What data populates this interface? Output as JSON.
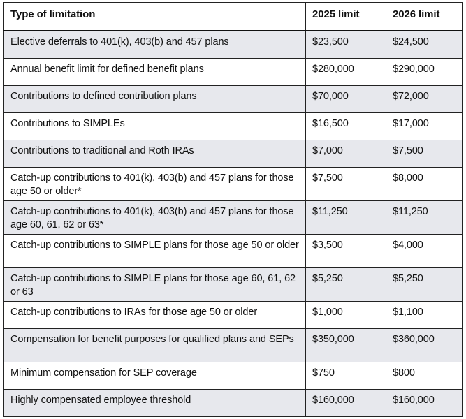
{
  "table": {
    "header": [
      "Type of limitation",
      "2025 limit",
      "2026 limit"
    ],
    "rows": [
      [
        "Elective deferrals to 401(k), 403(b) and 457 plans",
        "$23,500",
        "$24,500"
      ],
      [
        "Annual benefit limit for defined benefit plans",
        "$280,000",
        "$290,000"
      ],
      [
        "Contributions to defined contribution plans",
        "$70,000",
        "$72,000"
      ],
      [
        "Contributions to SIMPLEs",
        "$16,500",
        "$17,000"
      ],
      [
        "Contributions to traditional and Roth IRAs",
        "$7,000",
        "$7,500"
      ],
      [
        "Catch-up contributions to 401(k), 403(b) and 457 plans for those age 50 or older*",
        "$7,500",
        "$8,000"
      ],
      [
        "Catch-up contributions to 401(k), 403(b) and 457 plans for those age 60, 61, 62 or 63*",
        "$11,250",
        "$11,250"
      ],
      [
        "Catch-up contributions to SIMPLE plans for those age 50 or older",
        "$3,500",
        "$4,000"
      ],
      [
        "Catch-up contributions to SIMPLE plans for those age 60, 61, 62 or 63",
        "$5,250",
        "$5,250"
      ],
      [
        "Catch-up contributions to IRAs for those age 50 or older",
        "$1,000",
        "$1,100"
      ],
      [
        "Compensation for benefit purposes for qualified plans and SEPs",
        "$350,000",
        "$360,000"
      ],
      [
        "Minimum compensation for SEP coverage",
        "$750",
        "$800"
      ],
      [
        "Highly compensated employee threshold",
        "$160,000",
        "$160,000"
      ]
    ]
  }
}
